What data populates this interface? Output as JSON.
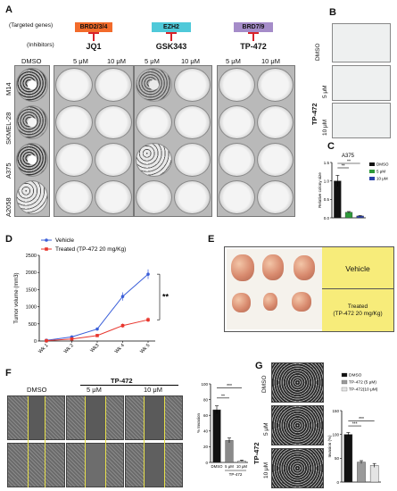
{
  "panel_labels": {
    "a": "A",
    "b": "B",
    "c": "C",
    "d": "D",
    "e": "E",
    "f": "F",
    "g": "G"
  },
  "panelA": {
    "targeted_label": "(Targeted genes)",
    "inhibitors_label": "(Inhibitors)",
    "groups": [
      {
        "gene": "BRD2/3/4",
        "drug": "JQ1",
        "color": "#f26b2b",
        "doses": [
          "5 μM",
          "10 μM"
        ]
      },
      {
        "gene": "EZH2",
        "drug": "GSK343",
        "color": "#4fc9d9",
        "doses": [
          "5 μM",
          "10 μM"
        ]
      },
      {
        "gene": "BRD7/9",
        "drug": "TP-472",
        "color": "#a58cc9",
        "doses": [
          "5 μM",
          "10 μM"
        ]
      }
    ],
    "dmso": "DMSO",
    "cell_lines": [
      "M14",
      "SKMEL-28",
      "A375",
      "A2058"
    ]
  },
  "panelB": {
    "labels": [
      "DMSO",
      "5 μM",
      "10 μM"
    ],
    "group_label": "TP-472"
  },
  "panelC": {
    "title": "A375",
    "ylabel": "Relative colony size",
    "sig": [
      "**",
      "**"
    ],
    "legend": [
      {
        "label": "DMSO",
        "color": "#111111"
      },
      {
        "label": "5 μM",
        "color": "#2e9a3a"
      },
      {
        "label": "10 μM",
        "color": "#2b3fa8"
      }
    ]
  },
  "panelD": {
    "ylabel": "Tumor volume (mm3)",
    "sig": "**"
  },
  "panelE": {
    "vehicle": "Vehicle",
    "treated": "Treated\n(TP-472 20 mg/Kg)"
  },
  "panelF": {
    "dmso": "DMSO",
    "group": "TP-472",
    "doses": [
      "5 μM",
      "10 μM"
    ],
    "ylabel": "% Invasion",
    "sig": [
      "**",
      "***"
    ],
    "xticks": [
      "DMSO",
      "5 μM",
      "10 μM"
    ],
    "group_bottom": "TP-472"
  },
  "panelG": {
    "labels": [
      "DMSO",
      "5 μM",
      "10 μM"
    ],
    "group": "TP-472",
    "ylabel": "Invasion (%)",
    "sig": [
      "***",
      "***"
    ],
    "legend": [
      {
        "label": "DMSO",
        "color": "#111111"
      },
      {
        "label": "TP-472 (5 μM)",
        "color": "#9a9a9a"
      },
      {
        "label": "TP-472(10 μM)",
        "color": "#e4e4e4"
      }
    ]
  },
  "chart_data": [
    {
      "type": "bar",
      "title": "A375",
      "ylabel": "Relative colony size",
      "categories": [
        "DMSO",
        "5 μM",
        "10 μM"
      ],
      "values": [
        1.0,
        0.15,
        0.05
      ],
      "errors": [
        0.15,
        0.02,
        0.01
      ],
      "ylim": [
        0,
        1.5
      ],
      "yticks": [
        "0.0",
        "0.5",
        "1.0",
        "1.5"
      ],
      "colors": [
        "#111111",
        "#2e9a3a",
        "#2b3fa8"
      ]
    },
    {
      "type": "line",
      "ylabel": "Tumor volume (mm3)",
      "x": [
        "Wk 1",
        "Wk 2",
        "Wk3",
        "Wk 4",
        "Wk 5"
      ],
      "ylim": [
        0,
        2500
      ],
      "yticks": [
        "0",
        "500",
        "1000",
        "1500",
        "2000",
        "2500"
      ],
      "series": [
        {
          "name": "Vehicle",
          "color": "#3b5fd9",
          "values": [
            20,
            120,
            350,
            1300,
            1950
          ],
          "errors": [
            10,
            20,
            40,
            120,
            140
          ]
        },
        {
          "name": "Treated (TP-472 20 mg/Kg)",
          "color": "#e8362d",
          "values": [
            10,
            60,
            160,
            450,
            620
          ],
          "errors": [
            5,
            15,
            20,
            60,
            70
          ]
        }
      ]
    },
    {
      "type": "bar",
      "ylabel": "% Invasion",
      "categories": [
        "DMSO",
        "5 μM",
        "10 μM"
      ],
      "values": [
        67,
        28,
        2
      ],
      "errors": [
        5,
        3,
        1
      ],
      "ylim": [
        0,
        100
      ],
      "yticks": [
        "0",
        "20",
        "40",
        "60",
        "80",
        "100"
      ],
      "colors": [
        "#111111",
        "#8a8a8a",
        "#dddddd"
      ]
    },
    {
      "type": "bar",
      "ylabel": "Invasion (%)",
      "categories": [
        "DMSO",
        "TP-472 (5 μM)",
        "TP-472(10 μM)"
      ],
      "values": [
        100,
        42,
        35
      ],
      "errors": [
        4,
        3,
        4
      ],
      "ylim": [
        0,
        150
      ],
      "yticks": [
        "0",
        "50",
        "100",
        "150"
      ],
      "colors": [
        "#111111",
        "#9a9a9a",
        "#e4e4e4"
      ]
    }
  ]
}
